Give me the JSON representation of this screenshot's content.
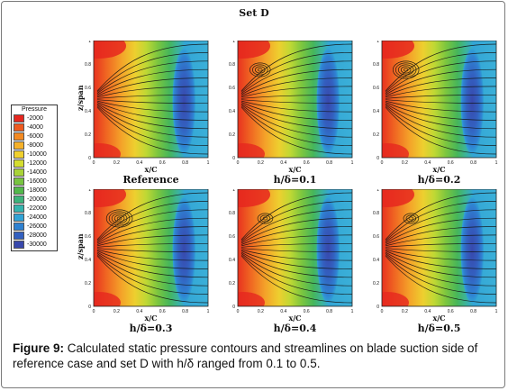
{
  "figure": {
    "set_title": "Set D",
    "caption_label": "Figure 9:",
    "caption_text": "Calculated static pressure contours and streamlines on blade suction side of reference case and set D with h/δ ranged from 0.1 to 0.5."
  },
  "chart_data": {
    "type": "heatmap",
    "xlabel": "x/C",
    "ylabel": "z/span",
    "xlim": [
      0,
      1
    ],
    "ylim": [
      0,
      1
    ],
    "x_ticks": [
      "0",
      "0.2",
      "0.4",
      "0.6",
      "0.8",
      "1"
    ],
    "y_ticks": [
      "0",
      "0.2",
      "0.4",
      "0.6",
      "0.8",
      "1"
    ],
    "legend": {
      "title": "Pressure",
      "levels": [
        "-2000",
        "-4000",
        "-6000",
        "-8000",
        "-10000",
        "-12000",
        "-14000",
        "-16000",
        "-18000",
        "-20000",
        "-22000",
        "-24000",
        "-26000",
        "-28000",
        "-30000"
      ],
      "colors": [
        "#e6271f",
        "#ee5a20",
        "#f38a22",
        "#f5b12a",
        "#efd02e",
        "#d4dd30",
        "#a9d338",
        "#78c440",
        "#52b84a",
        "#3db37a",
        "#35b4ae",
        "#31a3d6",
        "#2f82d2",
        "#3360c0",
        "#3848ac"
      ]
    },
    "panels": [
      {
        "label": "Reference"
      },
      {
        "label": "h/δ=0.1"
      },
      {
        "label": "h/δ=0.2"
      },
      {
        "label": "h/δ=0.3"
      },
      {
        "label": "h/δ=0.4"
      },
      {
        "label": "h/δ=0.5"
      }
    ]
  }
}
